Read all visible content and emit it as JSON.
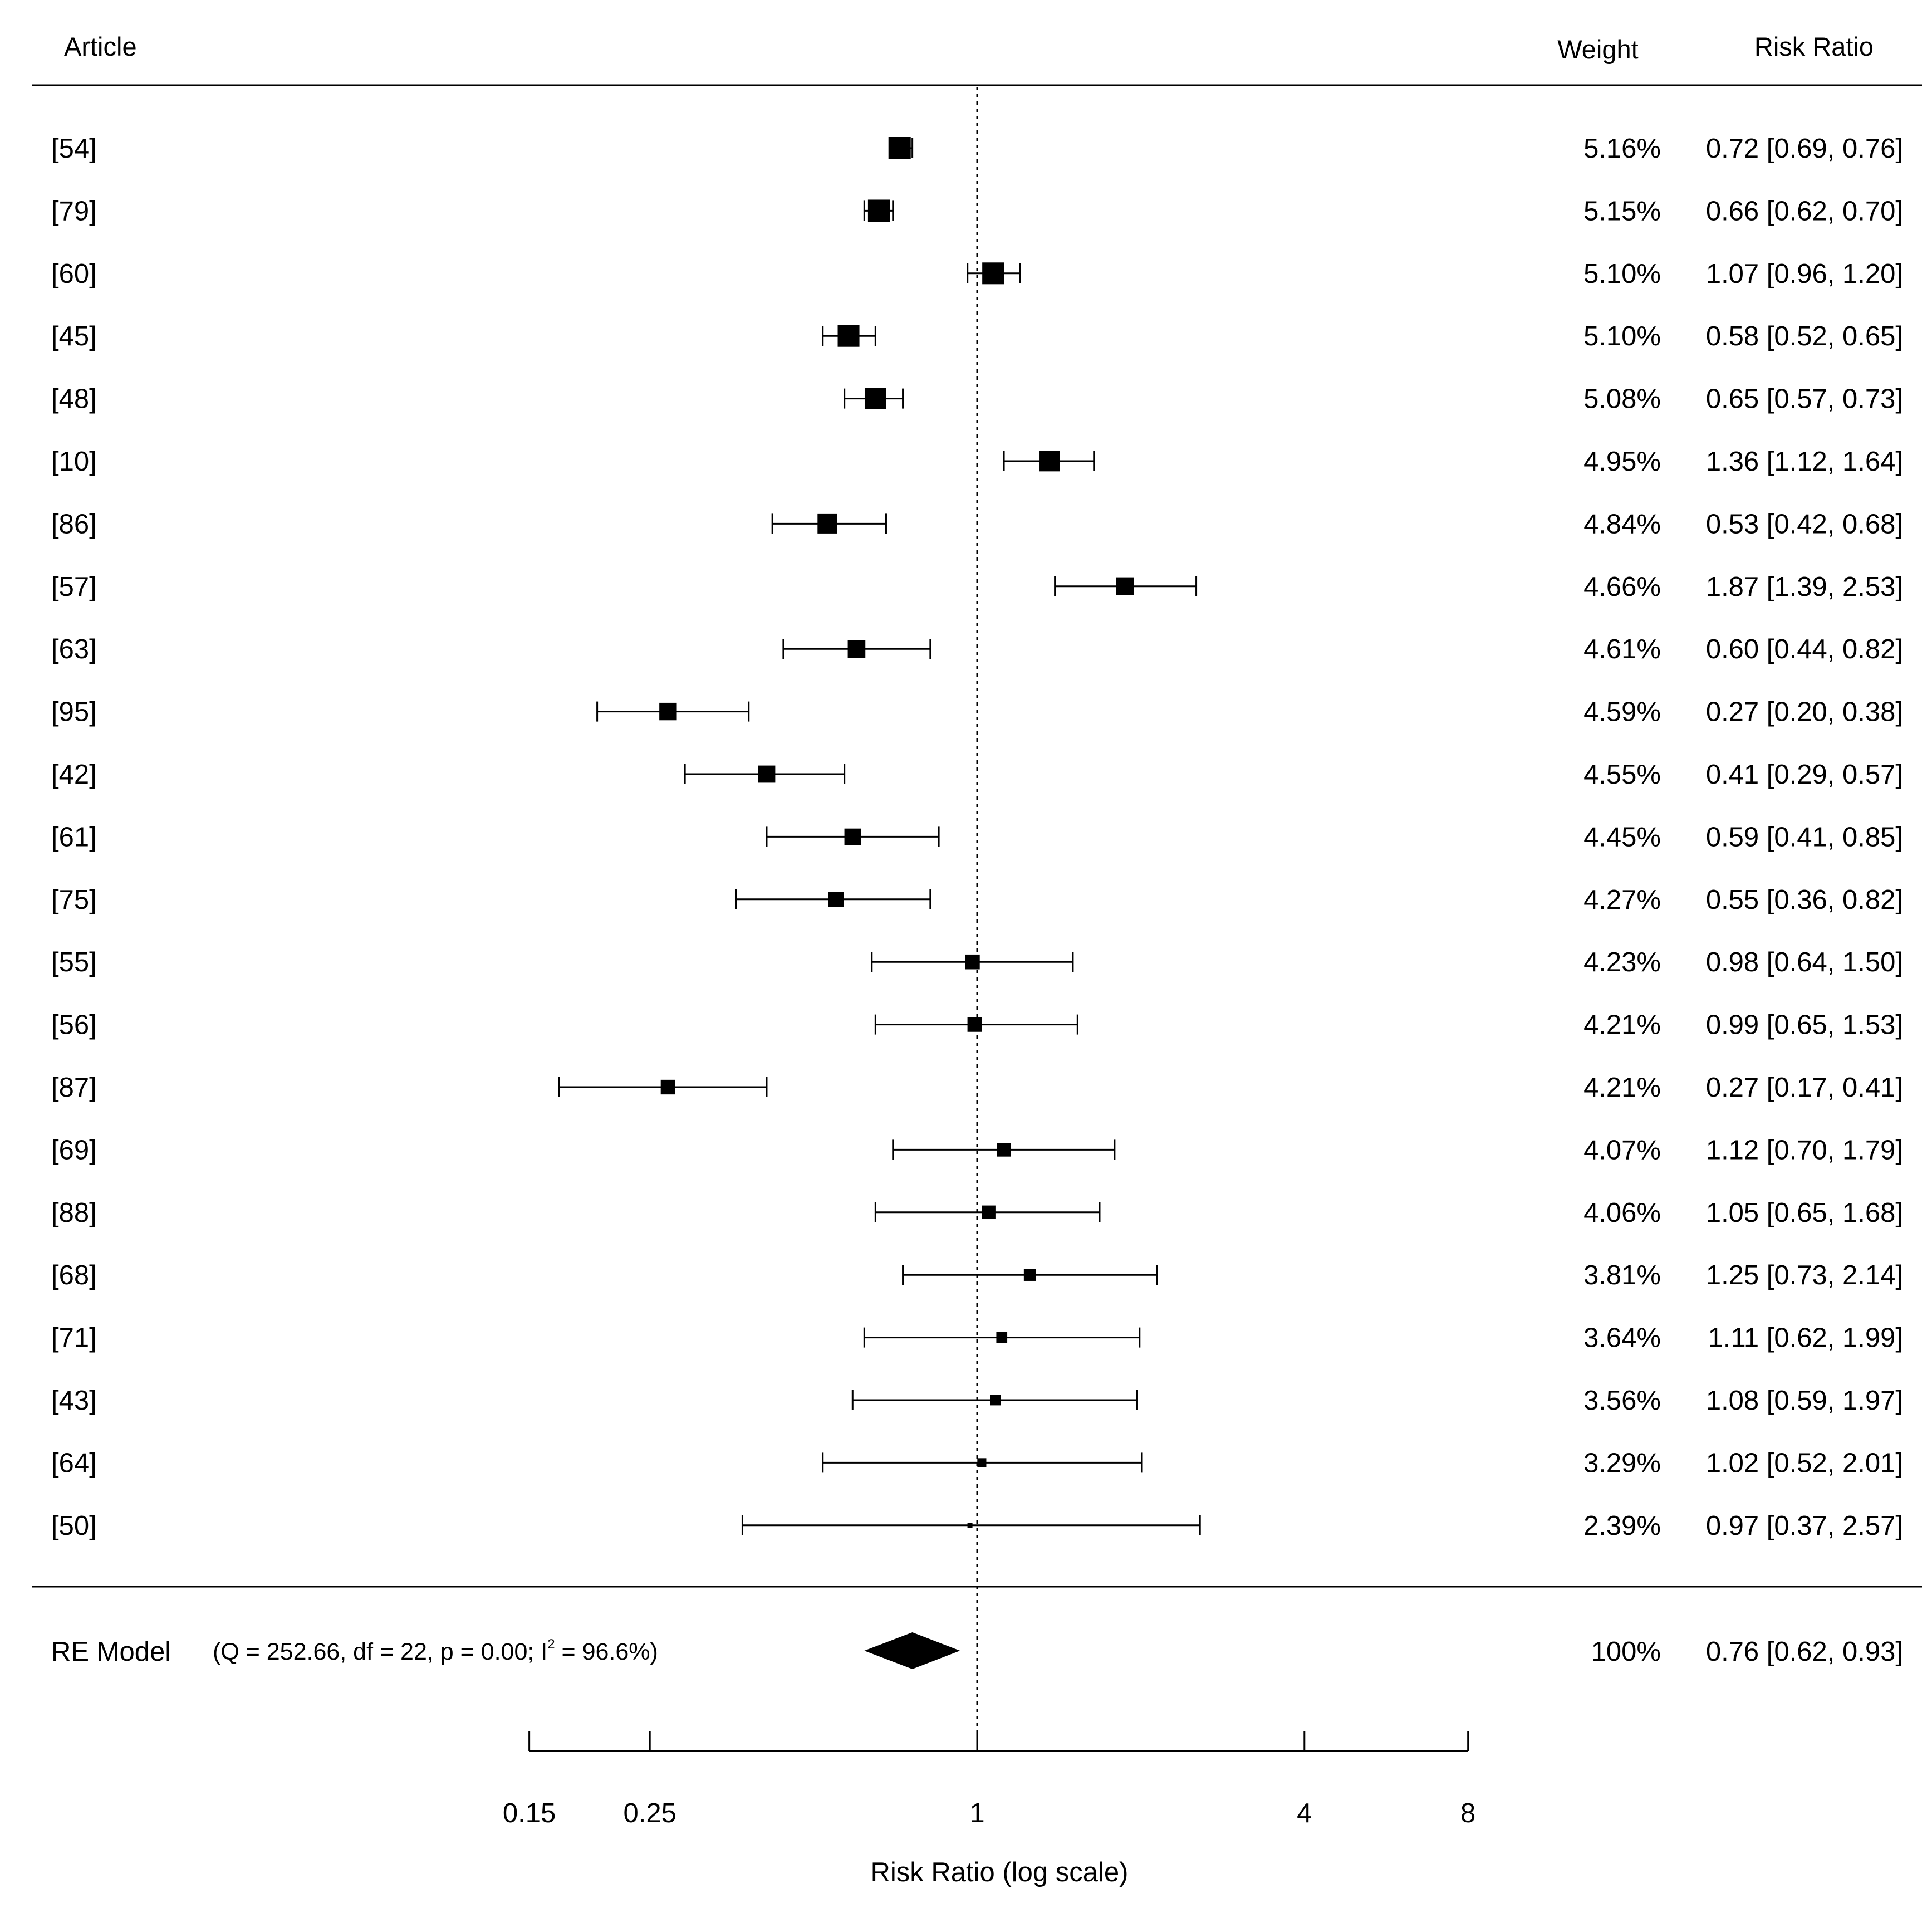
{
  "chart_data": {
    "type": "forest",
    "headers": {
      "article": "Article",
      "weight": "Weight",
      "risk_ratio": "Risk Ratio"
    },
    "xlabel": "Risk Ratio (log scale)",
    "x_scale": "log",
    "xlim": [
      0.15,
      8
    ],
    "reference_line": 1,
    "ticks": [
      {
        "value": 0.15,
        "label": "0.15"
      },
      {
        "value": 0.25,
        "label": "0.25"
      },
      {
        "value": 1,
        "label": "1"
      },
      {
        "value": 4,
        "label": "4"
      },
      {
        "value": 8,
        "label": "8"
      }
    ],
    "studies": [
      {
        "label": "[54]",
        "rr": 0.72,
        "lo": 0.69,
        "hi": 0.76,
        "weight": 5.16,
        "weight_text": "5.16%",
        "ci_text": "0.72 [0.69, 0.76]"
      },
      {
        "label": "[79]",
        "rr": 0.66,
        "lo": 0.62,
        "hi": 0.7,
        "weight": 5.15,
        "weight_text": "5.15%",
        "ci_text": "0.66 [0.62, 0.70]"
      },
      {
        "label": "[60]",
        "rr": 1.07,
        "lo": 0.96,
        "hi": 1.2,
        "weight": 5.1,
        "weight_text": "5.10%",
        "ci_text": "1.07 [0.96, 1.20]"
      },
      {
        "label": "[45]",
        "rr": 0.58,
        "lo": 0.52,
        "hi": 0.65,
        "weight": 5.1,
        "weight_text": "5.10%",
        "ci_text": "0.58 [0.52, 0.65]"
      },
      {
        "label": "[48]",
        "rr": 0.65,
        "lo": 0.57,
        "hi": 0.73,
        "weight": 5.08,
        "weight_text": "5.08%",
        "ci_text": "0.65 [0.57, 0.73]"
      },
      {
        "label": "[10]",
        "rr": 1.36,
        "lo": 1.12,
        "hi": 1.64,
        "weight": 4.95,
        "weight_text": "4.95%",
        "ci_text": "1.36 [1.12, 1.64]"
      },
      {
        "label": "[86]",
        "rr": 0.53,
        "lo": 0.42,
        "hi": 0.68,
        "weight": 4.84,
        "weight_text": "4.84%",
        "ci_text": "0.53 [0.42, 0.68]"
      },
      {
        "label": "[57]",
        "rr": 1.87,
        "lo": 1.39,
        "hi": 2.53,
        "weight": 4.66,
        "weight_text": "4.66%",
        "ci_text": "1.87 [1.39, 2.53]"
      },
      {
        "label": "[63]",
        "rr": 0.6,
        "lo": 0.44,
        "hi": 0.82,
        "weight": 4.61,
        "weight_text": "4.61%",
        "ci_text": "0.60 [0.44, 0.82]"
      },
      {
        "label": "[95]",
        "rr": 0.27,
        "lo": 0.2,
        "hi": 0.38,
        "weight": 4.59,
        "weight_text": "4.59%",
        "ci_text": "0.27 [0.20, 0.38]"
      },
      {
        "label": "[42]",
        "rr": 0.41,
        "lo": 0.29,
        "hi": 0.57,
        "weight": 4.55,
        "weight_text": "4.55%",
        "ci_text": "0.41 [0.29, 0.57]"
      },
      {
        "label": "[61]",
        "rr": 0.59,
        "lo": 0.41,
        "hi": 0.85,
        "weight": 4.45,
        "weight_text": "4.45%",
        "ci_text": "0.59 [0.41, 0.85]"
      },
      {
        "label": "[75]",
        "rr": 0.55,
        "lo": 0.36,
        "hi": 0.82,
        "weight": 4.27,
        "weight_text": "4.27%",
        "ci_text": "0.55 [0.36, 0.82]"
      },
      {
        "label": "[55]",
        "rr": 0.98,
        "lo": 0.64,
        "hi": 1.5,
        "weight": 4.23,
        "weight_text": "4.23%",
        "ci_text": "0.98 [0.64, 1.50]"
      },
      {
        "label": "[56]",
        "rr": 0.99,
        "lo": 0.65,
        "hi": 1.53,
        "weight": 4.21,
        "weight_text": "4.21%",
        "ci_text": "0.99 [0.65, 1.53]"
      },
      {
        "label": "[87]",
        "rr": 0.27,
        "lo": 0.17,
        "hi": 0.41,
        "weight": 4.21,
        "weight_text": "4.21%",
        "ci_text": "0.27 [0.17, 0.41]"
      },
      {
        "label": "[69]",
        "rr": 1.12,
        "lo": 0.7,
        "hi": 1.79,
        "weight": 4.07,
        "weight_text": "4.07%",
        "ci_text": "1.12 [0.70, 1.79]"
      },
      {
        "label": "[88]",
        "rr": 1.05,
        "lo": 0.65,
        "hi": 1.68,
        "weight": 4.06,
        "weight_text": "4.06%",
        "ci_text": "1.05 [0.65, 1.68]"
      },
      {
        "label": "[68]",
        "rr": 1.25,
        "lo": 0.73,
        "hi": 2.14,
        "weight": 3.81,
        "weight_text": "3.81%",
        "ci_text": "1.25 [0.73, 2.14]"
      },
      {
        "label": "[71]",
        "rr": 1.11,
        "lo": 0.62,
        "hi": 1.99,
        "weight": 3.64,
        "weight_text": "3.64%",
        "ci_text": "1.11 [0.62, 1.99]"
      },
      {
        "label": "[43]",
        "rr": 1.08,
        "lo": 0.59,
        "hi": 1.97,
        "weight": 3.56,
        "weight_text": "3.56%",
        "ci_text": "1.08 [0.59, 1.97]"
      },
      {
        "label": "[64]",
        "rr": 1.02,
        "lo": 0.52,
        "hi": 2.01,
        "weight": 3.29,
        "weight_text": "3.29%",
        "ci_text": "1.02 [0.52, 2.01]"
      },
      {
        "label": "[50]",
        "rr": 0.97,
        "lo": 0.37,
        "hi": 2.57,
        "weight": 2.39,
        "weight_text": "2.39%",
        "ci_text": "0.97 [0.37, 2.57]"
      }
    ],
    "summary": {
      "label": "RE Model",
      "stats_prefix": "(Q = 252.66, df = 22, p = 0.00; I",
      "stats_sup": "2",
      "stats_suffix": " = 96.6%)",
      "rr": 0.76,
      "lo": 0.62,
      "hi": 0.93,
      "weight_text": "100%",
      "ci_text": "0.76 [0.62, 0.93]"
    }
  }
}
